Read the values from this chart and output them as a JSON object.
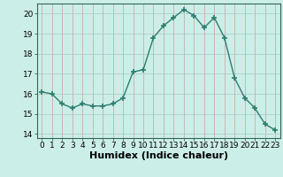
{
  "x": [
    0,
    1,
    2,
    3,
    4,
    5,
    6,
    7,
    8,
    9,
    10,
    11,
    12,
    13,
    14,
    15,
    16,
    17,
    18,
    19,
    20,
    21,
    22,
    23
  ],
  "y": [
    16.1,
    16.0,
    15.5,
    15.3,
    15.5,
    15.4,
    15.4,
    15.5,
    15.8,
    17.1,
    17.2,
    18.8,
    19.4,
    19.8,
    20.2,
    19.9,
    19.3,
    19.8,
    18.8,
    16.8,
    15.8,
    15.3,
    14.5,
    14.2
  ],
  "line_color": "#2e7d6e",
  "marker": "+",
  "markersize": 4,
  "markeredgewidth": 1.2,
  "linewidth": 1.0,
  "bg_color": "#cceee8",
  "grid_color_x": "#c8a0a0",
  "grid_color_y": "#a8c8c8",
  "xlabel": "Humidex (Indice chaleur)",
  "xlabel_fontsize": 8,
  "xlabel_weight": "bold",
  "xlim": [
    -0.5,
    23.5
  ],
  "ylim": [
    13.8,
    20.5
  ],
  "yticks": [
    14,
    15,
    16,
    17,
    18,
    19,
    20
  ],
  "xticks": [
    0,
    1,
    2,
    3,
    4,
    5,
    6,
    7,
    8,
    9,
    10,
    11,
    12,
    13,
    14,
    15,
    16,
    17,
    18,
    19,
    20,
    21,
    22,
    23
  ],
  "tick_fontsize": 6.5,
  "spine_color": "#336655",
  "title_fontsize": 8
}
